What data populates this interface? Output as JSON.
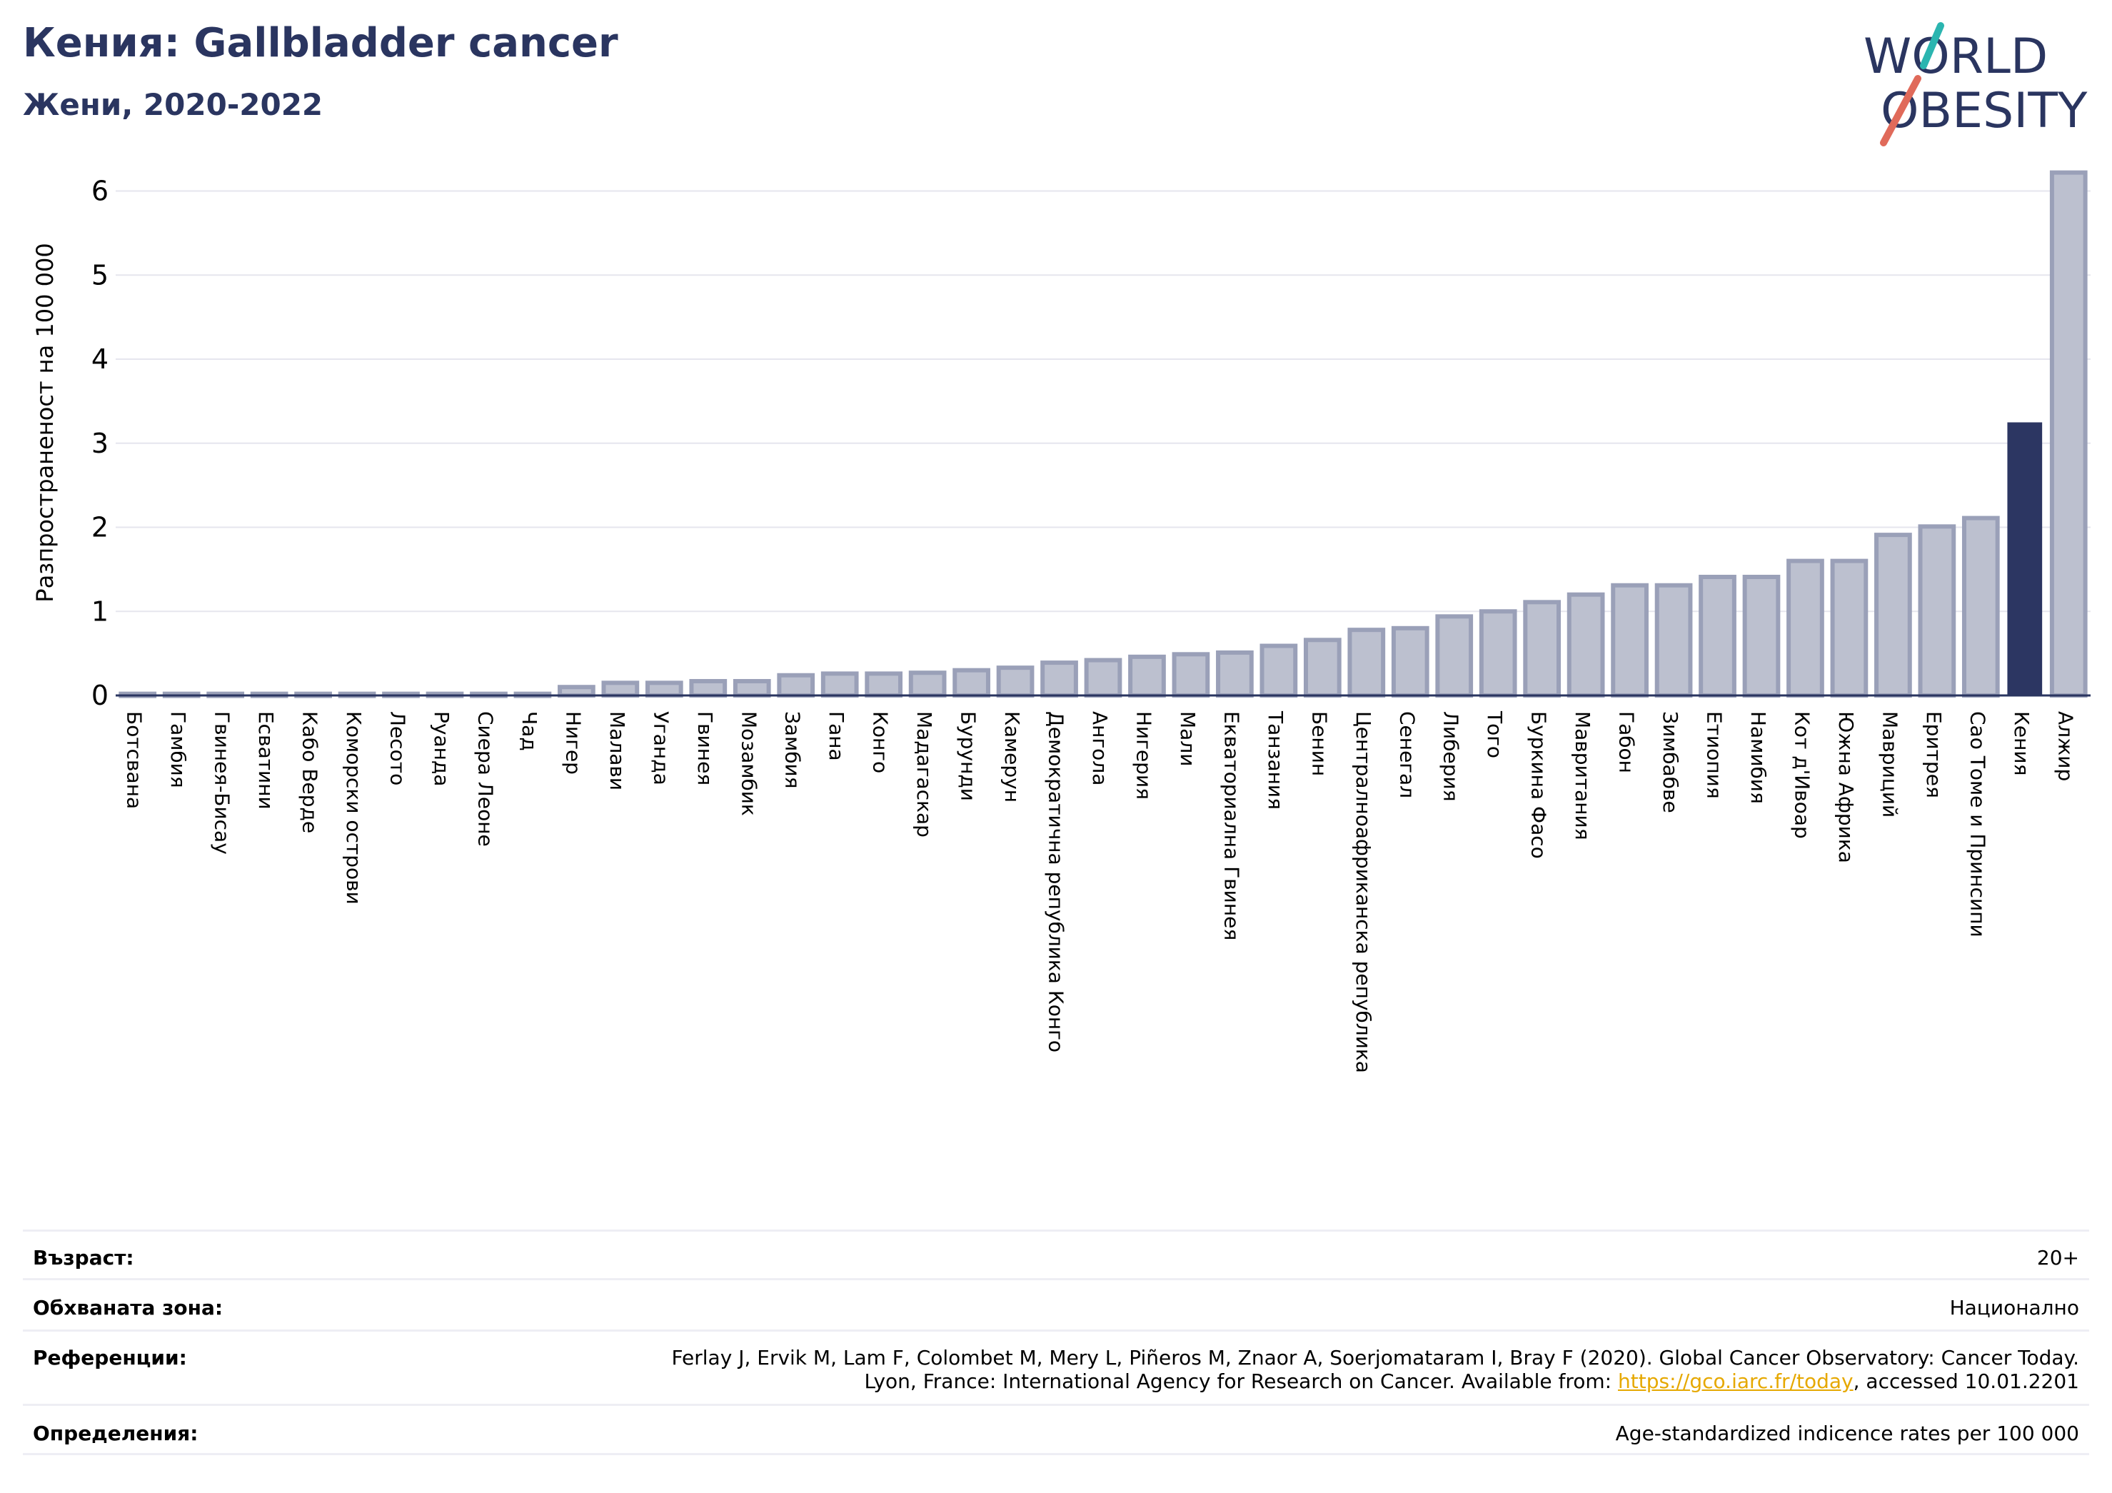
{
  "header": {
    "title": "Кения: Gallbladder cancer",
    "subtitle": "Жени, 2020-2022"
  },
  "logo": {
    "line1": "WORLD",
    "line2": "OBESITY"
  },
  "colors": {
    "highlight": "#2c3662",
    "bar_fill": "#bcc0cf",
    "bar_stroke": "#9aa0b8",
    "accent_teal": "#2bb5b0",
    "accent_red": "#e06a5a"
  },
  "chart_data": {
    "type": "bar",
    "ylabel": "Разпространеност  на 100 000",
    "ylim": [
      0,
      6.2
    ],
    "yticks": [
      0,
      1,
      2,
      3,
      4,
      5,
      6
    ],
    "grid": true,
    "highlight": "Кения",
    "categories": [
      "Ботсвана",
      "Гамбия",
      "Гвинея-Бисау",
      "Есватини",
      "Кабо Верде",
      "Коморски острови",
      "Лесото",
      "Руанда",
      "Сиера Леоне",
      "Чад",
      "Нигер",
      "Малави",
      "Уганда",
      "Гвинея",
      "Мозамбик",
      "Замбия",
      "Гана",
      "Конго",
      "Мадагаскар",
      "Бурунди",
      "Камерун",
      "Демократична република Конго",
      "Ангола",
      "Нигерия",
      "Мали",
      "Екваториална Гвинея",
      "Танзания",
      "Бенин",
      "Централноафриканска република",
      "Сенегал",
      "Либерия",
      "Того",
      "Буркина Фасо",
      "Мавритания",
      "Габон",
      "Зимбабве",
      "Етиопия",
      "Намибия",
      "Кот д'Ивоар",
      "Южна Африка",
      "Мавриций",
      "Еритрея",
      "Сао Томе и Принсипи",
      "Кения",
      "Алжир"
    ],
    "values": [
      0.02,
      0.02,
      0.02,
      0.02,
      0.02,
      0.02,
      0.02,
      0.02,
      0.02,
      0.02,
      0.1,
      0.15,
      0.15,
      0.17,
      0.17,
      0.24,
      0.26,
      0.26,
      0.27,
      0.3,
      0.33,
      0.39,
      0.42,
      0.46,
      0.49,
      0.51,
      0.59,
      0.66,
      0.78,
      0.8,
      0.94,
      1.0,
      1.11,
      1.2,
      1.31,
      1.31,
      1.41,
      1.41,
      1.6,
      1.6,
      1.91,
      2.01,
      2.11,
      3.24,
      6.22
    ]
  },
  "info": {
    "age_label": "Възраст:",
    "age_value": "20+",
    "area_label": "Обхваната зона:",
    "area_value": "Национално",
    "ref_label": "Референции:",
    "ref_line1": "Ferlay J, Ervik M, Lam F, Colombet M, Mery L, Piñeros M, Znaor A, Soerjomataram I, Bray F (2020). Global Cancer Observatory: Cancer Today.",
    "ref_line2_pre": "Lyon, France: International Agency for Research on Cancer. Available from: ",
    "ref_link": "https://gco.iarc.fr/today",
    "ref_line2_post": ", accessed 10.01.2201",
    "def_label": "Определения:",
    "def_value": "Age-standardized indicence rates per 100 000"
  }
}
